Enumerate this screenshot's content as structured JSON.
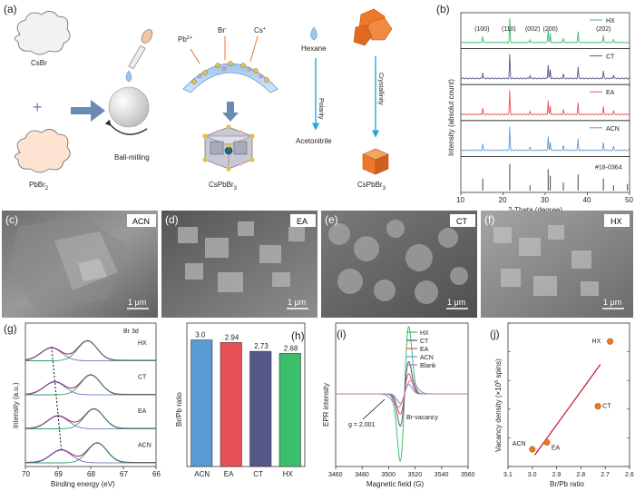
{
  "panel_labels": [
    "(a)",
    "(b)",
    "(c)",
    "(d)",
    "(e)",
    "(f)",
    "(g)",
    "(h)",
    "(i)",
    "(j)"
  ],
  "schematic": {
    "csbr": "CsBr",
    "plus": "+",
    "pbbr2": "PbBr",
    "pbbr2_sub": "2",
    "ball_milling": "Ball-milling",
    "pb_ion": "Pb",
    "pb_sup": "2+",
    "br_ion": "Br",
    "br_sup": "-",
    "cs_ion": "Cs",
    "cs_sup": "+",
    "product": "CsPbBr",
    "product_sub": "3",
    "hexane": "Hexane",
    "polarity": "Polarity",
    "acetonitrile": "Acetonitrile",
    "crystallinity": "Crystallinity",
    "product2": "CsPbBr",
    "product2_sub": "3"
  },
  "sem": [
    {
      "label": "ACN",
      "scale": "1 μm"
    },
    {
      "label": "EA",
      "scale": "1 μm"
    },
    {
      "label": "CT",
      "scale": "1 μm"
    },
    {
      "label": "HX",
      "scale": "1 μm"
    }
  ],
  "colors": {
    "HX": "#3bbf6b",
    "CT": "#54578a",
    "EA": "#e84f57",
    "ACN": "#5b9bd5",
    "Blank": "#b07ab0",
    "ref": "#444444",
    "ball": "#d8d8d8",
    "arrow": "#6a89b3",
    "blue_arrow": "#2aa4d8",
    "orange": "#ee7728",
    "fit_line": "#c0152a"
  },
  "chart_data": [
    {
      "id": "b",
      "type": "line",
      "title": "",
      "xlabel": "2-Theta (degree)",
      "ylabel": "Intensity (absolut count)",
      "xlim": [
        10,
        50
      ],
      "xticks": [
        10,
        20,
        30,
        40,
        50
      ],
      "series": [
        {
          "name": "HX",
          "peaks": [
            [
              15.2,
              0.25
            ],
            [
              21.6,
              0.95
            ],
            [
              26.4,
              0.12
            ],
            [
              30.7,
              0.55
            ],
            [
              31.2,
              0.35
            ],
            [
              34.3,
              0.18
            ],
            [
              37.8,
              0.45
            ],
            [
              43.8,
              0.3
            ],
            [
              46.2,
              0.15
            ]
          ]
        },
        {
          "name": "CT",
          "peaks": [
            [
              15.2,
              0.25
            ],
            [
              21.6,
              0.95
            ],
            [
              26.4,
              0.12
            ],
            [
              30.7,
              0.55
            ],
            [
              31.2,
              0.35
            ],
            [
              34.3,
              0.18
            ],
            [
              37.8,
              0.45
            ],
            [
              43.8,
              0.3
            ],
            [
              46.2,
              0.15
            ]
          ]
        },
        {
          "name": "EA",
          "peaks": [
            [
              15.2,
              0.25
            ],
            [
              21.6,
              0.95
            ],
            [
              26.4,
              0.12
            ],
            [
              30.7,
              0.55
            ],
            [
              31.2,
              0.35
            ],
            [
              34.3,
              0.18
            ],
            [
              37.8,
              0.45
            ],
            [
              43.8,
              0.3
            ],
            [
              46.2,
              0.15
            ]
          ]
        },
        {
          "name": "ACN",
          "peaks": [
            [
              15.2,
              0.25
            ],
            [
              21.6,
              0.95
            ],
            [
              26.4,
              0.12
            ],
            [
              30.7,
              0.55
            ],
            [
              31.2,
              0.35
            ],
            [
              34.3,
              0.18
            ],
            [
              37.8,
              0.45
            ],
            [
              43.8,
              0.3
            ],
            [
              46.2,
              0.15
            ]
          ]
        }
      ],
      "reference": {
        "name": "#18-0364",
        "sticks": [
          [
            15.2,
            0.45
          ],
          [
            21.6,
            0.98
          ],
          [
            26.4,
            0.2
          ],
          [
            30.7,
            0.8
          ],
          [
            31.2,
            0.55
          ],
          [
            34.3,
            0.3
          ],
          [
            37.8,
            0.6
          ],
          [
            43.8,
            0.45
          ],
          [
            46.2,
            0.2
          ],
          [
            49.5,
            0.25
          ]
        ]
      },
      "peak_labels": [
        {
          "text": "(100)",
          "x": 15.2
        },
        {
          "text": "(110)",
          "x": 21.6
        },
        {
          "text": "(002)",
          "x": 27.2
        },
        {
          "text": "(200)",
          "x": 31.4
        },
        {
          "text": "(202)",
          "x": 44.0
        }
      ]
    },
    {
      "id": "g",
      "type": "line",
      "title": "Br 3d",
      "xlabel": "Binding energy (eV)",
      "ylabel": "Intensity (a.u.)",
      "xlim": [
        70,
        66
      ],
      "xticks": [
        70,
        69,
        68,
        67,
        66
      ],
      "series": [
        {
          "name": "HX",
          "peak1": 69.2,
          "peak2": 68.1
        },
        {
          "name": "CT",
          "peak1": 69.1,
          "peak2": 68.0
        },
        {
          "name": "EA",
          "peak1": 69.0,
          "peak2": 67.9
        },
        {
          "name": "ACN",
          "peak1": 68.9,
          "peak2": 67.8
        }
      ]
    },
    {
      "id": "h",
      "type": "bar",
      "xlabel": "",
      "ylabel": "Br/Pb ratio",
      "categories": [
        "ACN",
        "EA",
        "CT",
        "HX"
      ],
      "values": [
        3.0,
        2.94,
        2.73,
        2.68
      ],
      "value_labels": [
        "3.0",
        "2.94",
        "2.73",
        "2.68"
      ],
      "ylim": [
        0,
        3.4
      ]
    },
    {
      "id": "i",
      "type": "line",
      "xlabel": "Magnetic field (G)",
      "ylabel": "EPR intensity",
      "xlim": [
        3460,
        3560
      ],
      "xticks": [
        3460,
        3480,
        3500,
        3520,
        3540,
        3560
      ],
      "series": [
        {
          "name": "HX",
          "amplitude": 1.0
        },
        {
          "name": "CT",
          "amplitude": 0.48
        },
        {
          "name": "EA",
          "amplitude": 0.3
        },
        {
          "name": "ACN",
          "amplitude": 0.14
        },
        {
          "name": "Blank",
          "amplitude": 0.2
        }
      ],
      "annotations": [
        "g = 2.001",
        "Br-vacancy"
      ]
    },
    {
      "id": "j",
      "type": "scatter",
      "xlabel": "Br/Pb ratio",
      "ylabel": "Vacancy density (×10",
      "ylabel_sup": "6",
      "ylabel_end": " spins)",
      "xlim": [
        3.1,
        2.6
      ],
      "xticks": [
        3.1,
        3.0,
        2.9,
        2.8,
        2.7,
        2.6
      ],
      "xtick_labels": [
        "3.1",
        "3.0",
        "2.9",
        "2.8",
        "2.7",
        "2.6"
      ],
      "ylim": [
        0,
        2.5
      ],
      "yticks": [
        0.0,
        0.5,
        1.0,
        1.5,
        2.0,
        2.5
      ],
      "ytick_labels": [
        "0.0",
        "0.5",
        "1.0",
        "1.5",
        "2.0",
        "2.5"
      ],
      "points": [
        {
          "name": "ACN",
          "x": 3.0,
          "y": 0.3
        },
        {
          "name": "EA",
          "x": 2.94,
          "y": 0.42
        },
        {
          "name": "CT",
          "x": 2.73,
          "y": 1.05
        },
        {
          "name": "HX",
          "x": 2.68,
          "y": 2.18
        }
      ],
      "fit": [
        [
          2.99,
          0.2
        ],
        [
          2.72,
          1.78
        ]
      ]
    }
  ]
}
